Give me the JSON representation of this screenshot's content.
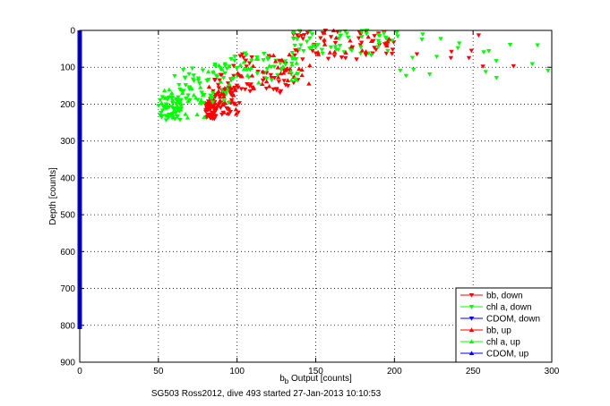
{
  "chart_data": {
    "type": "scatter",
    "xlabel_main": "b",
    "xlabel_sub": "b",
    "xlabel_rest": " Output [counts]",
    "ylabel": "Depth [counts]",
    "caption": "SG503 Ross2012, dive 493 started 27-Jan-2013 10:10:53",
    "xlim": [
      0,
      300
    ],
    "ylim": [
      0,
      900
    ],
    "y_reversed": true,
    "grid": true,
    "grid_style": "dotted",
    "legend_position": "bottom-right",
    "x_ticks": [
      "0",
      "50",
      "100",
      "150",
      "200",
      "250",
      "300"
    ],
    "y_ticks": [
      "0",
      "100",
      "200",
      "300",
      "400",
      "500",
      "600",
      "700",
      "800",
      "900"
    ],
    "series": [
      {
        "name": "bb, down",
        "color": "#ff0000",
        "marker": "triangle-down",
        "clusters": [
          {
            "x": [
              80,
              87
            ],
            "y": [
              185,
              240
            ],
            "n": 60
          },
          {
            "x": [
              84,
              102
            ],
            "y": [
              120,
              230
            ],
            "n": 50
          },
          {
            "x": [
              95,
              140
            ],
            "y": [
              60,
              170
            ],
            "n": 45
          },
          {
            "x": [
              135,
              200
            ],
            "y": [
              0,
              80
            ],
            "n": 50
          },
          {
            "x": [
              200,
              300
            ],
            "y": [
              10,
              110
            ],
            "n": 8
          }
        ]
      },
      {
        "name": "chl a, down",
        "color": "#00ff00",
        "marker": "triangle-down",
        "clusters": [
          {
            "x": [
              50,
              65
            ],
            "y": [
              180,
              245
            ],
            "n": 60
          },
          {
            "x": [
              60,
              95
            ],
            "y": [
              90,
              200
            ],
            "n": 60
          },
          {
            "x": [
              95,
              140
            ],
            "y": [
              60,
              140
            ],
            "n": 40
          },
          {
            "x": [
              135,
              200
            ],
            "y": [
              0,
              70
            ],
            "n": 55
          },
          {
            "x": [
              200,
              298
            ],
            "y": [
              0,
              140
            ],
            "n": 22
          }
        ]
      },
      {
        "name": "CDOM, down",
        "color": "#0000ff",
        "marker": "triangle-down",
        "x_value": 0,
        "y_range": [
          0,
          810
        ]
      },
      {
        "name": "bb, up",
        "color": "#ff0000",
        "marker": "triangle-up",
        "clusters": [
          {
            "x": [
              80,
              100
            ],
            "y": [
              150,
              230
            ],
            "n": 25
          },
          {
            "x": [
              100,
              150
            ],
            "y": [
              60,
              160
            ],
            "n": 30
          },
          {
            "x": [
              150,
              200
            ],
            "y": [
              0,
              70
            ],
            "n": 20
          }
        ]
      },
      {
        "name": "chl a, up",
        "color": "#00ff00",
        "marker": "triangle-up",
        "clusters": [
          {
            "x": [
              52,
              80
            ],
            "y": [
              150,
              240
            ],
            "n": 25
          },
          {
            "x": [
              80,
              140
            ],
            "y": [
              70,
              150
            ],
            "n": 25
          }
        ]
      },
      {
        "name": "CDOM, up",
        "color": "#0000ff",
        "marker": "triangle-up",
        "x_value": 0,
        "y_range": [
          0,
          810
        ]
      }
    ]
  }
}
